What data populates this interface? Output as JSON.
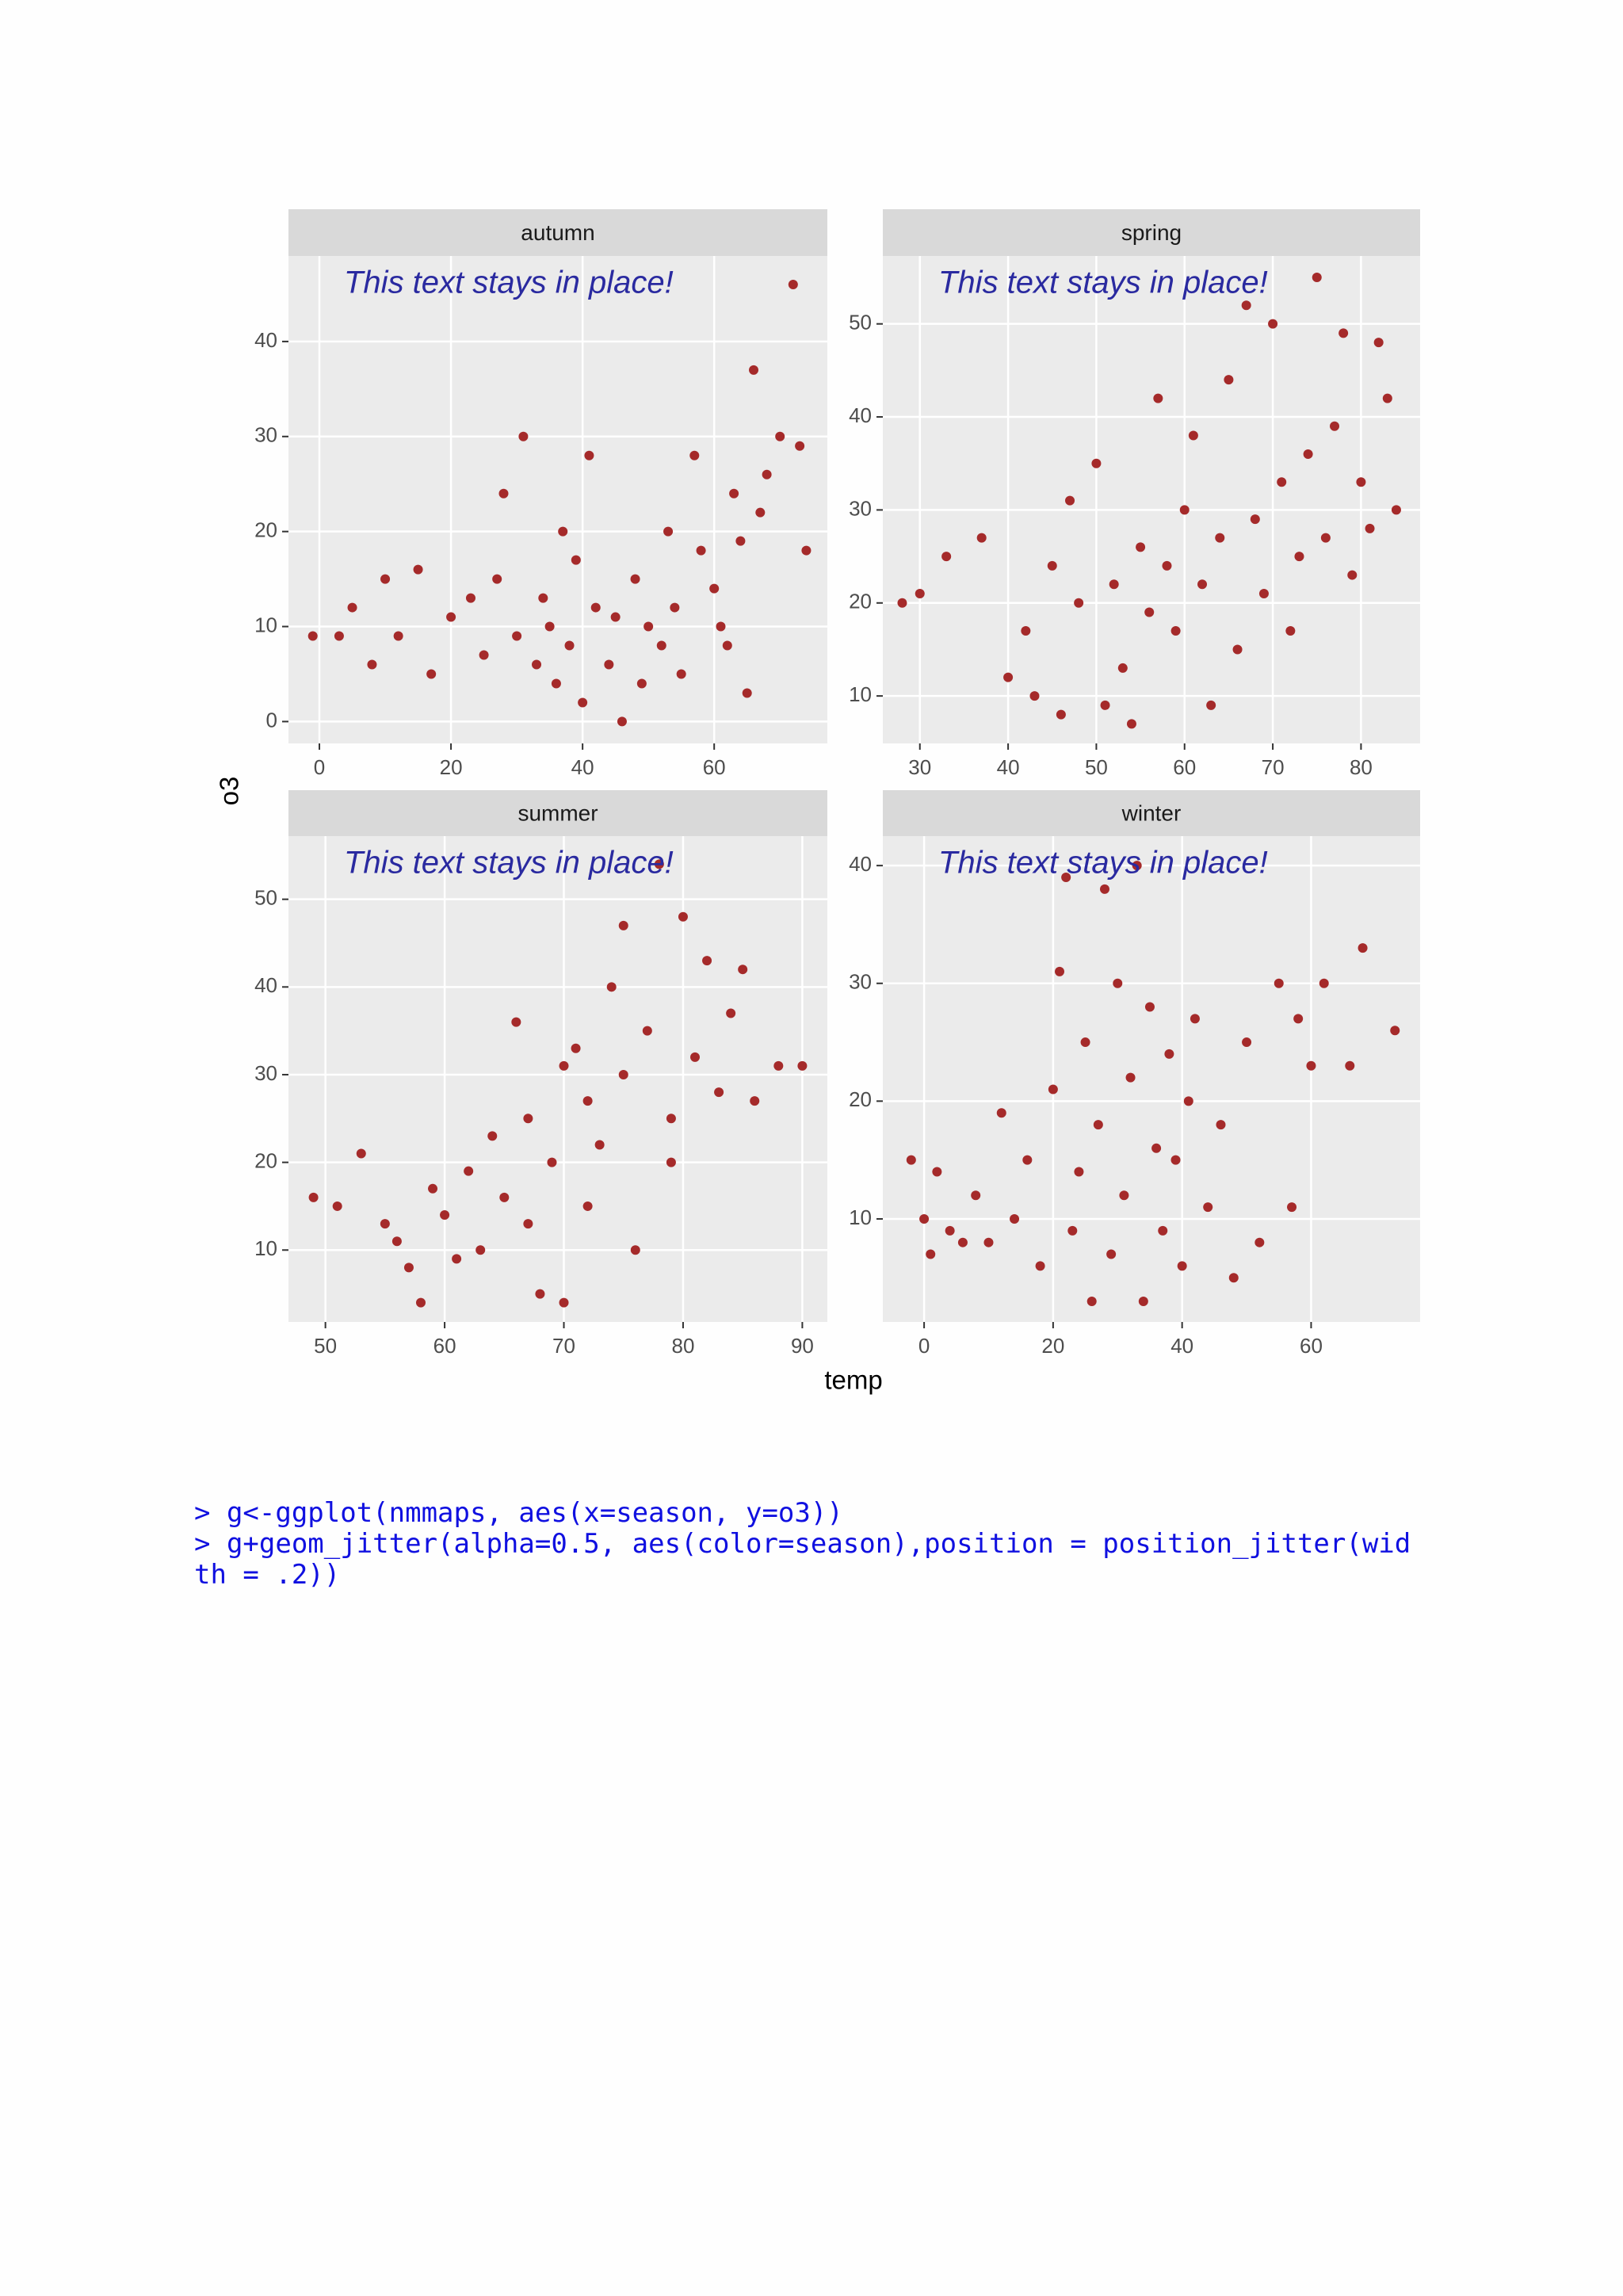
{
  "chart_data": [
    {
      "type": "scatter",
      "title": "autumn",
      "annotation": "This text stays in place!",
      "color": "#a52a2a",
      "grid": true,
      "xlim": [
        -4.7,
        77.2
      ],
      "ylim": [
        -2.3,
        49
      ],
      "xticks": [
        0,
        20,
        40,
        60
      ],
      "yticks": [
        0,
        10,
        20,
        30,
        40
      ],
      "x": [
        72,
        66,
        31,
        41,
        57,
        70,
        73,
        68,
        63,
        28,
        10,
        5,
        3,
        8,
        12,
        17,
        20,
        23,
        25,
        27,
        30,
        33,
        35,
        36,
        38,
        40,
        42,
        44,
        46,
        48,
        50,
        52,
        54,
        55,
        58,
        60,
        62,
        64,
        65,
        67,
        74,
        -1,
        15,
        37,
        45,
        53,
        61,
        39,
        34,
        49
      ],
      "y": [
        46,
        37,
        30,
        28,
        28,
        30,
        29,
        26,
        24,
        24,
        15,
        12,
        9,
        6,
        9,
        5,
        11,
        13,
        7,
        15,
        9,
        6,
        10,
        4,
        8,
        2,
        12,
        6,
        0,
        15,
        10,
        8,
        12,
        5,
        18,
        14,
        8,
        19,
        3,
        22,
        18,
        9,
        16,
        20,
        11,
        20,
        10,
        17,
        13,
        4
      ]
    },
    {
      "type": "scatter",
      "title": "spring",
      "annotation": "This text stays in place!",
      "color": "#a52a2a",
      "grid": true,
      "xlim": [
        25.8,
        86.7
      ],
      "ylim": [
        4.9,
        57.3
      ],
      "xticks": [
        30,
        40,
        50,
        60,
        70,
        80
      ],
      "yticks": [
        10,
        20,
        30,
        40,
        50
      ],
      "x": [
        28,
        30,
        33,
        37,
        40,
        42,
        43,
        45,
        47,
        48,
        50,
        51,
        52,
        53,
        55,
        56,
        57,
        58,
        59,
        60,
        61,
        62,
        63,
        64,
        65,
        66,
        67,
        68,
        69,
        70,
        71,
        72,
        74,
        75,
        76,
        77,
        78,
        79,
        80,
        82,
        83,
        84,
        46,
        54,
        73,
        81
      ],
      "y": [
        20,
        21,
        25,
        27,
        12,
        17,
        10,
        24,
        31,
        20,
        35,
        9,
        22,
        13,
        26,
        19,
        42,
        24,
        17,
        30,
        38,
        22,
        9,
        27,
        44,
        15,
        52,
        29,
        21,
        50,
        33,
        17,
        36,
        55,
        27,
        39,
        49,
        23,
        33,
        48,
        42,
        30,
        8,
        7,
        25,
        28
      ]
    },
    {
      "type": "scatter",
      "title": "summer",
      "annotation": "This text stays in place!",
      "color": "#a52a2a",
      "grid": true,
      "xlim": [
        46.9,
        92.1
      ],
      "ylim": [
        1.8,
        57.2
      ],
      "xticks": [
        50,
        60,
        70,
        80,
        90
      ],
      "yticks": [
        10,
        20,
        30,
        40,
        50
      ],
      "x": [
        49,
        51,
        53,
        55,
        56,
        57,
        58,
        59,
        60,
        61,
        62,
        63,
        64,
        65,
        66,
        67,
        68,
        69,
        70,
        71,
        72,
        73,
        74,
        75,
        76,
        77,
        78,
        79,
        80,
        81,
        82,
        83,
        84,
        85,
        86,
        88,
        90,
        70,
        75,
        67,
        72,
        79
      ],
      "y": [
        16,
        15,
        21,
        13,
        11,
        8,
        4,
        17,
        14,
        9,
        19,
        10,
        23,
        16,
        36,
        25,
        5,
        20,
        4,
        33,
        27,
        22,
        40,
        30,
        10,
        35,
        54,
        25,
        48,
        32,
        43,
        28,
        37,
        42,
        27,
        31,
        31,
        31,
        47,
        13,
        15,
        20
      ]
    },
    {
      "type": "scatter",
      "title": "winter",
      "annotation": "This text stays in place!",
      "color": "#a52a2a",
      "grid": true,
      "xlim": [
        -6.4,
        76.9
      ],
      "ylim": [
        1.25,
        42.5
      ],
      "xticks": [
        0,
        20,
        40,
        60
      ],
      "yticks": [
        10,
        20,
        30,
        40
      ],
      "x": [
        -2,
        0,
        1,
        2,
        4,
        6,
        8,
        10,
        12,
        14,
        16,
        18,
        20,
        21,
        22,
        23,
        24,
        25,
        26,
        27,
        28,
        29,
        30,
        31,
        32,
        33,
        34,
        35,
        36,
        37,
        38,
        39,
        40,
        41,
        42,
        44,
        46,
        48,
        50,
        52,
        55,
        57,
        60,
        62,
        66,
        68,
        73,
        58
      ],
      "y": [
        15,
        10,
        7,
        14,
        9,
        8,
        12,
        8,
        19,
        10,
        15,
        6,
        21,
        31,
        39,
        9,
        14,
        25,
        3,
        18,
        38,
        7,
        30,
        12,
        22,
        40,
        3,
        28,
        16,
        9,
        24,
        15,
        6,
        20,
        27,
        11,
        18,
        5,
        25,
        8,
        30,
        11,
        23,
        30,
        23,
        33,
        26,
        27
      ]
    }
  ],
  "axis_labels": {
    "x": "temp",
    "y": "o3"
  },
  "code": [
    "> g<-ggplot(nmmaps, aes(x=season, y=o3))",
    "> g+geom_jitter(alpha=0.5, aes(color=season),position = position_jitter(wid",
    "th = .2))"
  ]
}
